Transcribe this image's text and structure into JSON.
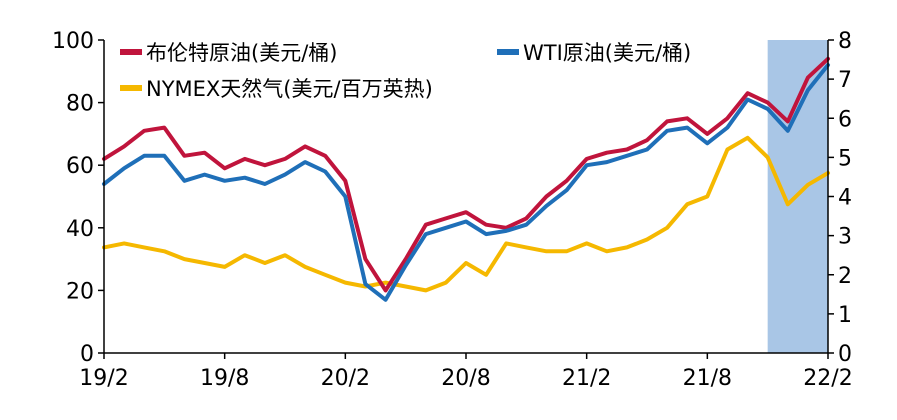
{
  "chart_data": {
    "type": "line",
    "x_ticks": [
      "19/2",
      "19/8",
      "20/2",
      "20/8",
      "21/2",
      "21/8",
      "22/2"
    ],
    "y_left": {
      "range": [
        0,
        100
      ],
      "ticks": [
        "0",
        "20",
        "40",
        "60",
        "80",
        "100"
      ]
    },
    "y_right": {
      "range": [
        0,
        8
      ],
      "ticks": [
        "0",
        "1",
        "2",
        "3",
        "4",
        "5",
        "6",
        "7",
        "8"
      ]
    },
    "highlight": {
      "x_start": "21/11",
      "x_end": "22/2",
      "color": "#a9c6e6"
    },
    "x_months": [
      "19/2",
      "19/3",
      "19/4",
      "19/5",
      "19/6",
      "19/7",
      "19/8",
      "19/9",
      "19/10",
      "19/11",
      "19/12",
      "20/1",
      "20/2",
      "20/3",
      "20/4",
      "20/5",
      "20/6",
      "20/7",
      "20/8",
      "20/9",
      "20/10",
      "20/11",
      "20/12",
      "21/1",
      "21/2",
      "21/3",
      "21/4",
      "21/5",
      "21/6",
      "21/7",
      "21/8",
      "21/9",
      "21/10",
      "21/11",
      "21/12",
      "22/1",
      "22/2"
    ],
    "series": [
      {
        "name": "布伦特原油(美元/桶)",
        "axis": "left",
        "color": "#c0143c",
        "values": [
          62,
          66,
          71,
          72,
          63,
          64,
          59,
          62,
          60,
          62,
          66,
          63,
          55,
          30,
          20,
          30,
          41,
          43,
          45,
          41,
          40,
          43,
          50,
          55,
          62,
          64,
          65,
          68,
          74,
          75,
          70,
          75,
          83,
          80,
          74,
          88,
          94
        ]
      },
      {
        "name": "WTI原油(美元/桶)",
        "axis": "left",
        "color": "#1f6fb8",
        "values": [
          54,
          59,
          63,
          63,
          55,
          57,
          55,
          56,
          54,
          57,
          61,
          58,
          50,
          22,
          17,
          28,
          38,
          40,
          42,
          38,
          39,
          41,
          47,
          52,
          60,
          61,
          63,
          65,
          71,
          72,
          67,
          72,
          81,
          78,
          71,
          84,
          92
        ]
      },
      {
        "name": "NYMEX天然气(美元/百万英热)",
        "axis": "right",
        "color": "#f5b800",
        "values": [
          2.7,
          2.8,
          2.7,
          2.6,
          2.4,
          2.3,
          2.2,
          2.5,
          2.3,
          2.5,
          2.2,
          2.0,
          1.8,
          1.7,
          1.8,
          1.7,
          1.6,
          1.8,
          2.3,
          2.0,
          2.8,
          2.7,
          2.6,
          2.6,
          2.8,
          2.6,
          2.7,
          2.9,
          3.2,
          3.8,
          4.0,
          5.2,
          5.5,
          5.0,
          3.8,
          4.3,
          4.6
        ]
      }
    ]
  }
}
